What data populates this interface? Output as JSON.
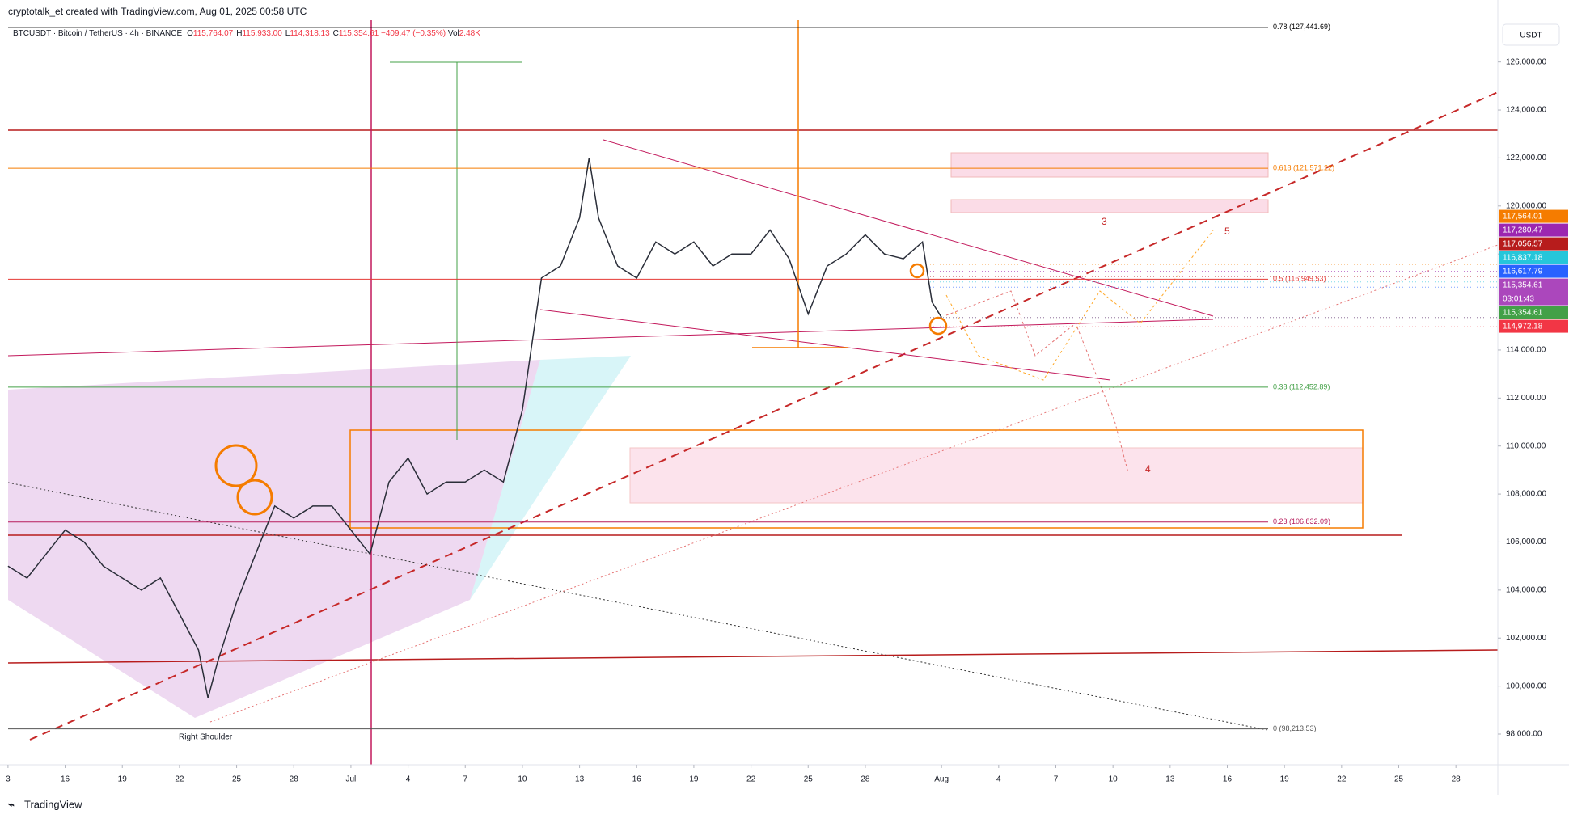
{
  "header": {
    "credit": "cryptotalk_et created with TradingView.com, Aug 01, 2025 00:58 UTC",
    "symbol": "BTCUSDT · Bitcoin / TetherUS · 4h · BINANCE",
    "ohlc": [
      {
        "key": "O",
        "value": "115,764.07"
      },
      {
        "key": "H",
        "value": "115,933.00"
      },
      {
        "key": "L",
        "value": "114,318.13"
      },
      {
        "key": "C",
        "value": "115,354.61"
      }
    ],
    "change": "−409.47 (−0.35%)",
    "volume_label": "Vol",
    "volume": "2.48K"
  },
  "currency": "USDT",
  "footer": "TradingView",
  "annotations": {
    "shoulder": "Right Shoulder",
    "wave3": "3",
    "wave4": "4",
    "wave5": "5"
  },
  "chart_data": {
    "type": "line",
    "color": "#2a2e39",
    "x": [
      0,
      1,
      2,
      3,
      4,
      5,
      6,
      7,
      8,
      9,
      10,
      10.5,
      11,
      12,
      13,
      14,
      15,
      16,
      17,
      18,
      19,
      20,
      21,
      22,
      23,
      24,
      25,
      26,
      27,
      28,
      29,
      30,
      30.5,
      31,
      32,
      33,
      34,
      35,
      36,
      37,
      38,
      39,
      40,
      41,
      42,
      43,
      44,
      45,
      46,
      47,
      48,
      48.5,
      49
    ],
    "values": [
      105000,
      104500,
      105500,
      106500,
      106000,
      105000,
      104500,
      104000,
      104500,
      103000,
      101500,
      99500,
      101000,
      103500,
      105500,
      107500,
      107000,
      107500,
      107500,
      106500,
      105500,
      108500,
      109500,
      108000,
      108500,
      108500,
      109000,
      108500,
      111500,
      117000,
      117500,
      119500,
      122000,
      119500,
      117500,
      117000,
      118500,
      118000,
      118500,
      117500,
      118000,
      118000,
      119000,
      117800,
      115500,
      117500,
      118000,
      118800,
      118000,
      117800,
      118500,
      116000,
      115354.61
    ],
    "xlim": [
      -0.42,
      78.2
    ],
    "xticks": [
      {
        "value": 0,
        "label": "3"
      },
      {
        "value": 3,
        "label": "16"
      },
      {
        "value": 6,
        "label": "19"
      },
      {
        "value": 9,
        "label": "22"
      },
      {
        "value": 12,
        "label": "25"
      },
      {
        "value": 15,
        "label": "28"
      },
      {
        "value": 18,
        "label": "Jul"
      },
      {
        "value": 21,
        "label": "4"
      },
      {
        "value": 24,
        "label": "7"
      },
      {
        "value": 27,
        "label": "10"
      },
      {
        "value": 30,
        "label": "13"
      },
      {
        "value": 33,
        "label": "16"
      },
      {
        "value": 36,
        "label": "19"
      },
      {
        "value": 39,
        "label": "22"
      },
      {
        "value": 42,
        "label": "25"
      },
      {
        "value": 45,
        "label": "28"
      },
      {
        "value": 49,
        "label": "Aug"
      },
      {
        "value": 52,
        "label": "4"
      },
      {
        "value": 55,
        "label": "7"
      },
      {
        "value": 58,
        "label": "10"
      },
      {
        "value": 61,
        "label": "13"
      },
      {
        "value": 64,
        "label": "16"
      },
      {
        "value": 67,
        "label": "19"
      },
      {
        "value": 70,
        "label": "22"
      },
      {
        "value": 73,
        "label": "25"
      },
      {
        "value": 76,
        "label": "28"
      }
    ],
    "ylim": [
      96720,
      127740
    ],
    "yticks": [
      {
        "value": 98000,
        "label": "98,000.00"
      },
      {
        "value": 100000,
        "label": "100,000.00"
      },
      {
        "value": 102000,
        "label": "102,000.00"
      },
      {
        "value": 104000,
        "label": "104,000.00"
      },
      {
        "value": 106000,
        "label": "106,000.00"
      },
      {
        "value": 108000,
        "label": "108,000.00"
      },
      {
        "value": 110000,
        "label": "110,000.00"
      },
      {
        "value": 112000,
        "label": "112,000.00"
      },
      {
        "value": 114000,
        "label": "114,000.00"
      },
      {
        "value": 116000,
        "label": "116,000.00"
      },
      {
        "value": 118000,
        "label": "118,000.00"
      },
      {
        "value": 120000,
        "label": "120,000.00"
      },
      {
        "value": 122000,
        "label": "122,000.00"
      },
      {
        "value": 124000,
        "label": "124,000.00"
      },
      {
        "value": 126000,
        "label": "126,000.00"
      }
    ],
    "levels": [
      {
        "label": "0.78 (127,441.69)",
        "value": 127441.69,
        "color": "#000000"
      },
      {
        "label": "0.618 (121,571.22)",
        "value": 121571.22,
        "color": "#f57c00"
      },
      {
        "label": "0.5 (116,949.53)",
        "value": 116949.53,
        "color": "#e53935"
      },
      {
        "label": "0.38 (112,452.89)",
        "value": 112452.89,
        "color": "#43a047"
      },
      {
        "label": "0.23 (106,832.09)",
        "value": 106832.09,
        "color": "#b71c5c"
      },
      {
        "label": "0 (98,213.53)",
        "value": 98213.53,
        "color": "#555555"
      }
    ],
    "price_tags": [
      {
        "label": "117,564.01",
        "value": 117564.01,
        "color": "#f57c00"
      },
      {
        "label": "117,280.47",
        "value": 117280.47,
        "color": "#9c27b0"
      },
      {
        "label": "117,056.57",
        "value": 117056.57,
        "color": "#b71c1c"
      },
      {
        "label": "116,837.18",
        "value": 116837.18,
        "color": "#26c6da"
      },
      {
        "label": "116,617.79",
        "value": 116617.79,
        "color": "#2962ff"
      },
      {
        "label": "115,354.61",
        "value": 115354.61,
        "color": "#ab47bc",
        "countdown": "03:01:43"
      },
      {
        "label": "115,354.61",
        "value": 115354.61,
        "color": "#43a047"
      },
      {
        "label": "114,972.18",
        "value": 114972.18,
        "color": "#f23645"
      }
    ]
  }
}
